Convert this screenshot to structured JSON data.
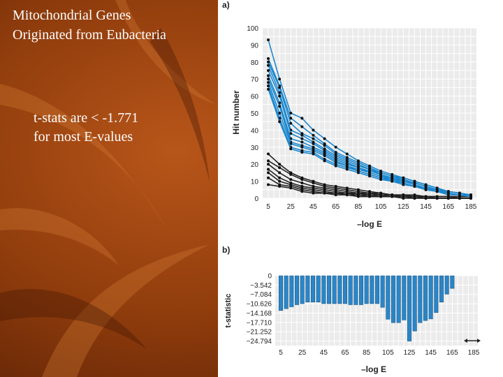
{
  "slide": {
    "title_line1": "Mitochondrial Genes",
    "title_line2": "Originated from Eubacteria",
    "note_line1": "t-stats are < -1.771",
    "note_line2": "for most E-values",
    "background_color": "#7a2e08"
  },
  "chart_data": [
    {
      "panel_label": "a)",
      "type": "line",
      "ylabel": "Hit number",
      "xlabel": "–log E",
      "x": [
        5,
        15,
        25,
        35,
        45,
        55,
        65,
        75,
        85,
        95,
        105,
        115,
        125,
        135,
        145,
        155,
        165,
        175,
        185
      ],
      "xticks": [
        "5",
        "25",
        "45",
        "65",
        "85",
        "105",
        "125",
        "145",
        "165",
        "185"
      ],
      "yticks": [
        "0",
        "10",
        "20",
        "30",
        "40",
        "50",
        "60",
        "70",
        "80",
        "90",
        "100"
      ],
      "xlim": [
        5,
        185
      ],
      "ylim": [
        0,
        100
      ],
      "grid": true,
      "blue_color": "#1a87cf",
      "black_color": "#222222",
      "blue_series": [
        [
          93,
          70,
          50,
          47,
          40,
          35,
          30,
          26,
          22,
          19,
          16,
          14,
          12,
          10,
          8,
          6,
          4,
          3,
          2
        ],
        [
          82,
          66,
          47,
          42,
          37,
          32,
          27,
          24,
          21,
          18,
          15,
          13,
          12,
          10,
          8,
          6,
          4,
          3,
          2
        ],
        [
          80,
          65,
          44,
          38,
          35,
          31,
          26,
          23,
          20,
          17,
          15,
          13,
          11,
          9,
          7,
          5,
          4,
          3,
          2
        ],
        [
          78,
          62,
          40,
          37,
          33,
          29,
          25,
          22,
          19,
          17,
          14,
          12,
          11,
          9,
          7,
          5,
          4,
          3,
          2
        ],
        [
          75,
          60,
          38,
          35,
          32,
          28,
          24,
          21,
          18,
          16,
          14,
          12,
          10,
          9,
          7,
          5,
          3,
          2,
          2
        ],
        [
          72,
          56,
          35,
          33,
          30,
          27,
          23,
          20,
          18,
          15,
          13,
          12,
          10,
          8,
          6,
          5,
          3,
          2,
          1
        ],
        [
          70,
          54,
          33,
          31,
          29,
          26,
          22,
          19,
          17,
          15,
          13,
          11,
          10,
          8,
          6,
          4,
          3,
          2,
          1
        ],
        [
          68,
          50,
          32,
          30,
          28,
          25,
          21,
          19,
          16,
          14,
          12,
          11,
          9,
          7,
          6,
          4,
          3,
          2,
          1
        ],
        [
          66,
          47,
          30,
          28,
          27,
          23,
          20,
          18,
          16,
          14,
          12,
          10,
          9,
          7,
          5,
          4,
          3,
          2,
          1
        ],
        [
          64,
          45,
          29,
          27,
          26,
          22,
          19,
          17,
          15,
          13,
          11,
          10,
          8,
          7,
          5,
          4,
          2,
          2,
          1
        ]
      ],
      "black_series": [
        [
          26,
          20,
          15,
          12,
          10,
          8,
          7,
          6,
          5,
          4,
          3,
          2,
          2,
          2,
          1,
          1,
          1,
          1,
          1
        ],
        [
          22,
          18,
          14,
          11,
          9,
          7,
          6,
          5,
          4,
          3,
          3,
          2,
          2,
          1,
          1,
          1,
          1,
          1,
          1
        ],
        [
          20,
          15,
          11,
          9,
          7,
          6,
          5,
          4,
          3,
          3,
          2,
          2,
          1,
          1,
          1,
          1,
          1,
          0,
          0
        ],
        [
          17,
          12,
          9,
          7,
          6,
          5,
          4,
          3,
          3,
          2,
          2,
          1,
          1,
          1,
          1,
          0,
          0,
          0,
          0
        ],
        [
          15,
          10,
          8,
          6,
          5,
          4,
          3,
          3,
          2,
          2,
          1,
          1,
          1,
          1,
          0,
          0,
          0,
          0,
          0
        ],
        [
          12,
          8,
          7,
          5,
          4,
          3,
          3,
          2,
          2,
          1,
          1,
          1,
          1,
          0,
          0,
          0,
          0,
          0,
          0
        ],
        [
          8,
          7,
          6,
          4,
          3,
          3,
          2,
          2,
          1,
          1,
          1,
          1,
          0,
          0,
          0,
          0,
          0,
          0,
          0
        ]
      ]
    },
    {
      "panel_label": "b)",
      "type": "bar",
      "ylabel": "t-statistic",
      "xlabel": "–log E",
      "yticks": [
        "0",
        "−3.542",
        "−7.084",
        "−10.626",
        "−14.168",
        "−17.710",
        "−21.252",
        "−24.794"
      ],
      "ytick_values": [
        0,
        -3.542,
        -7.084,
        -10.626,
        -14.168,
        -17.71,
        -21.252,
        -24.794
      ],
      "xticks": [
        "5",
        "25",
        "45",
        "65",
        "85",
        "105",
        "125",
        "145",
        "165",
        "185"
      ],
      "xlim": [
        5,
        185
      ],
      "ylim": [
        -26.5,
        0
      ],
      "grid": true,
      "bar_color": "#2a86c8",
      "x": [
        5,
        10,
        15,
        20,
        25,
        30,
        35,
        40,
        45,
        50,
        55,
        60,
        65,
        70,
        75,
        80,
        85,
        90,
        95,
        100,
        105,
        110,
        115,
        120,
        125,
        130,
        135,
        140,
        145,
        150,
        155,
        160,
        165
      ],
      "values": [
        -13.2,
        -12.5,
        -11.8,
        -11.0,
        -10.6,
        -10.0,
        -10.0,
        -10.0,
        -10.6,
        -10.6,
        -10.6,
        -10.6,
        -10.6,
        -11.0,
        -11.0,
        -11.0,
        -10.6,
        -10.6,
        -10.6,
        -12.0,
        -16.5,
        -17.8,
        -17.8,
        -16.8,
        -24.8,
        -21.0,
        -17.8,
        -17.0,
        -16.4,
        -14.0,
        -10.0,
        -7.0,
        -4.8
      ]
    }
  ]
}
